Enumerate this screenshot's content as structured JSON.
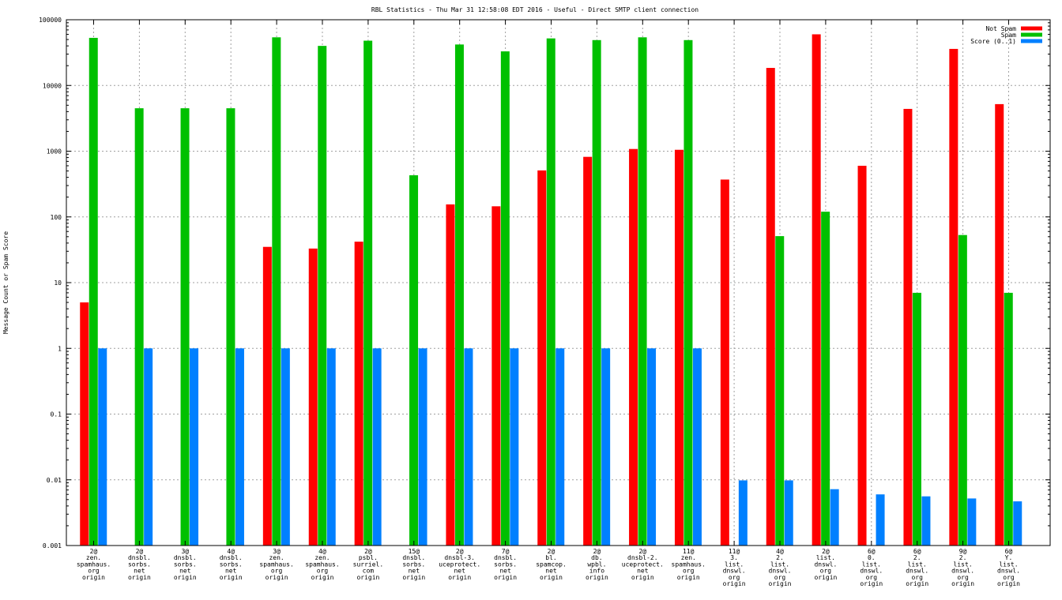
{
  "chart_data": {
    "type": "bar",
    "title": "RBL Statistics - Thu Mar 31 12:58:08 EDT 2016 - Useful - Direct SMTP client connection",
    "xlabel": "",
    "ylabel": "Message Count or Spam Score",
    "yscale": "log",
    "ylim": [
      0.001,
      100000
    ],
    "yticks": [
      "100000",
      "10000",
      "1000",
      "100",
      "10",
      "1",
      "0.1",
      "0.01",
      "0.001"
    ],
    "ytick_values": [
      100000,
      10000,
      1000,
      100,
      10,
      1,
      0.1,
      0.01,
      0.001
    ],
    "grid": true,
    "legend_position": "top-right",
    "categories": [
      [
        "2@",
        "zen.",
        "spamhaus.",
        "org",
        "origin"
      ],
      [
        "2@",
        "dnsbl.",
        "sorbs.",
        "net",
        "origin"
      ],
      [
        "3@",
        "dnsbl.",
        "sorbs.",
        "net",
        "origin"
      ],
      [
        "4@",
        "dnsbl.",
        "sorbs.",
        "net",
        "origin"
      ],
      [
        "3@",
        "zen.",
        "spamhaus.",
        "org",
        "origin"
      ],
      [
        "4@",
        "zen.",
        "spamhaus.",
        "org",
        "origin"
      ],
      [
        "2@",
        "psbl.",
        "surriel.",
        "com",
        "origin"
      ],
      [
        "15@",
        "dnsbl.",
        "sorbs.",
        "net",
        "origin"
      ],
      [
        "2@",
        "dnsbl-3.",
        "uceprotect.",
        "net",
        "origin"
      ],
      [
        "7@",
        "dnsbl.",
        "sorbs.",
        "net",
        "origin"
      ],
      [
        "2@",
        "bl.",
        "spamcop.",
        "net",
        "origin"
      ],
      [
        "2@",
        "db.",
        "wpbl.",
        "info",
        "origin"
      ],
      [
        "2@",
        "dnsbl-2.",
        "uceprotect.",
        "net",
        "origin"
      ],
      [
        "11@",
        "zen.",
        "spamhaus.",
        "org",
        "origin"
      ],
      [
        "11@",
        "3.",
        "list.",
        "dnswl.",
        "org",
        "origin"
      ],
      [
        "4@",
        "2.",
        "list.",
        "dnswl.",
        "org",
        "origin"
      ],
      [
        "2@",
        "list.",
        "dnswl.",
        "org",
        "origin"
      ],
      [
        "6@",
        "0.",
        "list.",
        "dnswl.",
        "org",
        "origin"
      ],
      [
        "6@",
        "2.",
        "list.",
        "dnswl.",
        "org",
        "origin"
      ],
      [
        "9@",
        "2.",
        "list.",
        "dnswl.",
        "org",
        "origin"
      ],
      [
        "6@",
        "Y.",
        "list.",
        "dnswl.",
        "org",
        "origin"
      ]
    ],
    "series": [
      {
        "name": "Not Spam",
        "color": "#ff0000",
        "values": [
          5,
          null,
          null,
          null,
          35,
          33,
          42,
          null,
          155,
          145,
          510,
          820,
          1080,
          1050,
          370,
          18500,
          60000,
          600,
          4400,
          36000,
          5200
        ]
      },
      {
        "name": "Spam",
        "color": "#00c000",
        "values": [
          53000,
          4500,
          4500,
          4500,
          54000,
          40000,
          48000,
          430,
          42000,
          33000,
          52000,
          49000,
          54000,
          49000,
          null,
          51,
          120,
          null,
          7,
          53,
          7
        ]
      },
      {
        "name": "Score (0..1)",
        "color": "#0080ff",
        "values": [
          1,
          1,
          1,
          1,
          1,
          1,
          1,
          1,
          1,
          1,
          1,
          1,
          1,
          1,
          0.0098,
          0.0098,
          0.0072,
          0.006,
          0.0056,
          0.0052,
          0.0047
        ]
      }
    ]
  }
}
